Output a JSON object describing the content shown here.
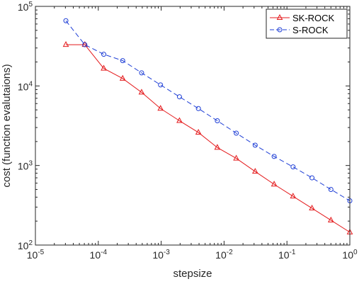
{
  "chart_data": {
    "type": "line",
    "xscale": "log",
    "yscale": "log",
    "xlim": [
      1e-05,
      1
    ],
    "ylim": [
      100,
      100000
    ],
    "xlabel": "stepsize",
    "ylabel": "cost (function evalutaions)",
    "xticks": [
      {
        "base": "10",
        "exp": "-5"
      },
      {
        "base": "10",
        "exp": "-4"
      },
      {
        "base": "10",
        "exp": "-3"
      },
      {
        "base": "10",
        "exp": "-2"
      },
      {
        "base": "10",
        "exp": "-1"
      },
      {
        "base": "10",
        "exp": "0"
      }
    ],
    "yticks": [
      {
        "base": "10",
        "exp": "2"
      },
      {
        "base": "10",
        "exp": "3"
      },
      {
        "base": "10",
        "exp": "4"
      },
      {
        "base": "10",
        "exp": "5"
      }
    ],
    "legend_position": "top-right",
    "grid": false,
    "x": [
      3.0518e-05,
      6.1035e-05,
      0.00012207,
      0.00024414,
      0.00048828,
      0.00097656,
      0.0019531,
      0.0039063,
      0.0078125,
      0.015625,
      0.03125,
      0.0625,
      0.125,
      0.25,
      0.5,
      1
    ],
    "series": [
      {
        "name": "SK-ROCK",
        "color": "#e41a1c",
        "marker": "triangle",
        "line_style": "solid",
        "values": [
          33000,
          33000,
          16600,
          12400,
          8300,
          5200,
          3650,
          2600,
          1680,
          1230,
          840,
          580,
          410,
          290,
          205,
          145
        ]
      },
      {
        "name": "S-ROCK",
        "color": "#1f3fd6",
        "marker": "circle",
        "line_style": "dashed",
        "values": [
          66000,
          33000,
          25000,
          20800,
          14600,
          10300,
          7300,
          5200,
          3650,
          2550,
          1800,
          1300,
          960,
          700,
          500,
          360
        ]
      }
    ]
  }
}
